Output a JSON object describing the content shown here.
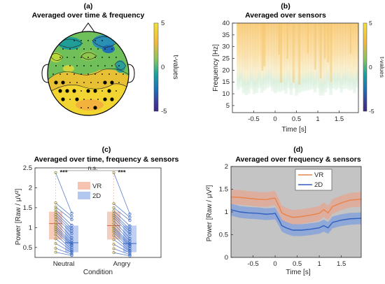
{
  "panels": {
    "a": {
      "label": "(a)",
      "title": "Averaged over time & frequency"
    },
    "b": {
      "label": "(b)",
      "title": "Averaged over sensors"
    },
    "c": {
      "label": "(c)",
      "title": "Averaged over time, frequency & sensors"
    },
    "d": {
      "label": "(d)",
      "title": "Averaged over frequency & sensors"
    }
  },
  "colorbar": {
    "label": "t-values",
    "ticks": [
      "5",
      "0",
      "-5"
    ],
    "colors": [
      "#f2e236",
      "#f2b840",
      "#82c560",
      "#19a29f",
      "#1d71b8",
      "#3d3d9a",
      "#3e2587"
    ]
  },
  "colors": {
    "vr": "#e8834a",
    "twod": "#2e5fbf",
    "vr_fill": "#f5c3b0",
    "twod_fill": "#b4c7ee",
    "grey_bg": "#c4c4c4"
  },
  "chart_data": [
    {
      "type": "heatmap",
      "id": "topoplot",
      "title": "Averaged over time & frequency",
      "colorbar_label": "t-values",
      "clim": [
        -5,
        5
      ],
      "note": "scalp topography; filled markers = significant sensors"
    },
    {
      "type": "heatmap",
      "id": "time_frequency",
      "title": "Averaged over sensors",
      "xlabel": "Time [s]",
      "ylabel": "Frequency [Hz]",
      "xlim": [
        -1,
        1.95
      ],
      "ylim": [
        2,
        40
      ],
      "xticks": [
        "-0.5",
        "0",
        "0.5",
        "1",
        "1.5"
      ],
      "yticks": [
        "5",
        "10",
        "15",
        "20",
        "25",
        "30",
        "35",
        "40"
      ],
      "colorbar_label": "t-values",
      "clim": [
        -5,
        5
      ],
      "significant_region": {
        "freq_range_hz": [
          9,
          40
        ],
        "time_range_s": [
          -0.9,
          1.95
        ]
      }
    },
    {
      "type": "scatter",
      "id": "paired_boxplot",
      "title": "Averaged over time, frequency & sensors",
      "xlabel": "Condition",
      "ylabel": "Power [Raw / μV²]",
      "ylim": [
        0.25,
        2.5
      ],
      "categories": [
        "Neutral",
        "Angry"
      ],
      "yticks": [
        "0.5",
        "1",
        "1.5",
        "2",
        "2.5"
      ],
      "legend": [
        "VR",
        "2D"
      ],
      "annotations": [
        "***",
        "***",
        "n.s."
      ],
      "series": [
        {
          "name": "VR",
          "box": {
            "Neutral": [
              0.7,
              1.1,
              1.4
            ],
            "Angry": [
              0.7,
              1.05,
              1.4
            ]
          },
          "Neutral": [
            2.38,
            1.62,
            1.52,
            1.45,
            1.38,
            1.32,
            1.27,
            1.2,
            1.12,
            1.05,
            1.0,
            0.95,
            0.9,
            0.82,
            0.72,
            0.6,
            0.48,
            0.38
          ],
          "Angry": [
            2.38,
            1.6,
            1.5,
            1.42,
            1.35,
            1.3,
            1.25,
            1.18,
            1.1,
            1.02,
            0.98,
            0.93,
            0.88,
            0.8,
            0.7,
            0.58,
            0.47,
            0.37
          ]
        },
        {
          "name": "2D",
          "box": {
            "Neutral": [
              0.38,
              0.62,
              1.05
            ],
            "Angry": [
              0.38,
              0.6,
              1.05
            ]
          },
          "Neutral": [
            1.36,
            1.28,
            1.2,
            1.06,
            0.98,
            0.92,
            0.85,
            0.75,
            0.68,
            0.62,
            0.58,
            0.55,
            0.5,
            0.45,
            0.41,
            0.37,
            0.33,
            0.3
          ],
          "Angry": [
            1.34,
            1.26,
            1.18,
            1.04,
            0.96,
            0.9,
            0.83,
            0.73,
            0.66,
            0.6,
            0.56,
            0.53,
            0.48,
            0.43,
            0.4,
            0.36,
            0.32,
            0.29
          ]
        }
      ]
    },
    {
      "type": "line",
      "id": "timecourse",
      "title": "Averaged over frequency & sensors",
      "xlabel": "Time [s]",
      "ylabel": "Power [Raw / μV²]",
      "xlim": [
        -1,
        1.95
      ],
      "ylim": [
        0,
        2
      ],
      "xticks": [
        "-0.5",
        "0",
        "0.5",
        "1",
        "1.5"
      ],
      "yticks": [
        "0",
        "0.5",
        "1",
        "1.5",
        "2"
      ],
      "legend": [
        "VR",
        "2D"
      ],
      "significance_shading": "entire window",
      "x": [
        -1.0,
        -0.8,
        -0.6,
        -0.4,
        -0.2,
        -0.05,
        0.0,
        0.1,
        0.15,
        0.25,
        0.4,
        0.6,
        0.8,
        1.0,
        1.1,
        1.2,
        1.3,
        1.5,
        1.7,
        1.95
      ],
      "series": [
        {
          "name": "VR",
          "values": [
            1.33,
            1.32,
            1.3,
            1.28,
            1.27,
            1.3,
            1.3,
            1.1,
            0.98,
            0.93,
            0.88,
            0.9,
            0.93,
            0.97,
            1.05,
            0.98,
            1.12,
            1.2,
            1.26,
            1.28
          ],
          "ci": 0.16
        },
        {
          "name": "2D",
          "values": [
            1.05,
            1.0,
            0.98,
            0.97,
            0.95,
            0.96,
            0.97,
            0.8,
            0.7,
            0.65,
            0.6,
            0.6,
            0.62,
            0.65,
            0.7,
            0.65,
            0.77,
            0.82,
            0.85,
            0.86
          ],
          "ci": 0.13
        }
      ]
    }
  ]
}
